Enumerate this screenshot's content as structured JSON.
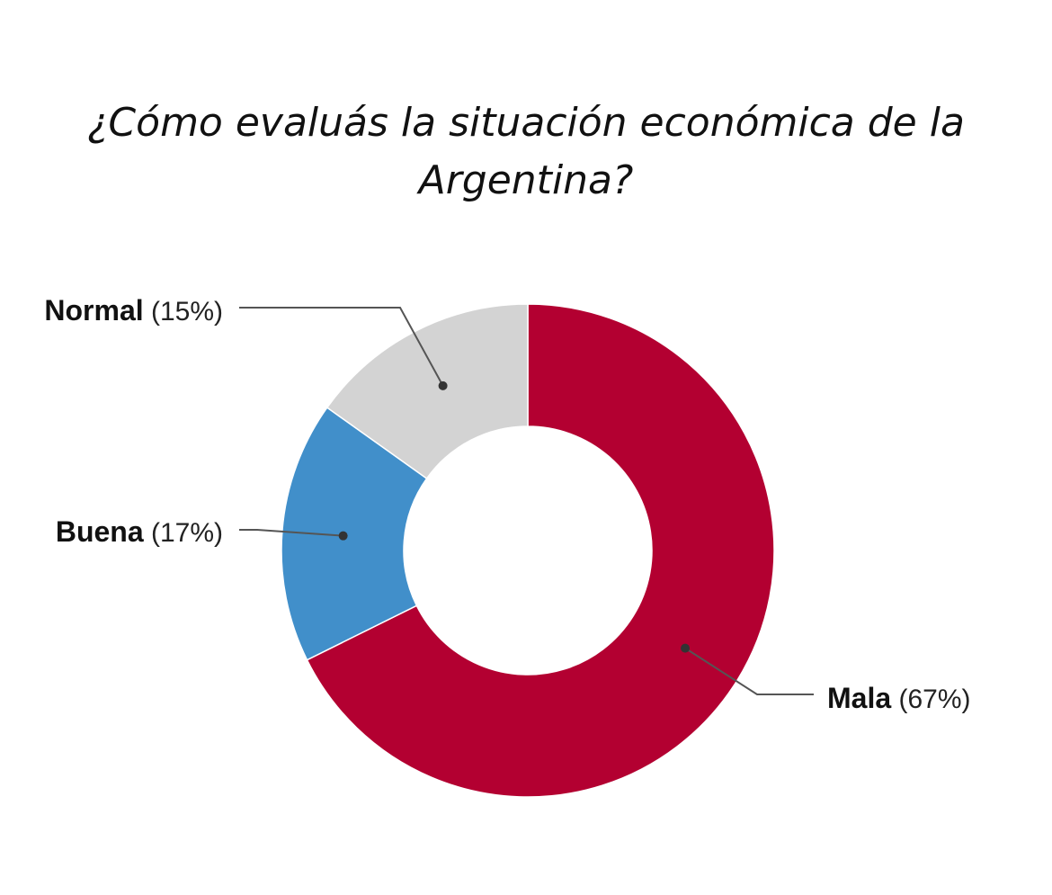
{
  "chart_data": {
    "type": "pie",
    "title": "¿Cómo evaluás la situación económica de la Argentina?",
    "slices": [
      {
        "label": "Mala",
        "value": 67,
        "value_label": "(67%)",
        "color": "#b30031"
      },
      {
        "label": "Buena",
        "value": 17,
        "value_label": "(17%)",
        "color": "#418fca"
      },
      {
        "label": "Normal",
        "value": 15,
        "value_label": "(15%)",
        "color": "#d3d3d3"
      }
    ]
  }
}
